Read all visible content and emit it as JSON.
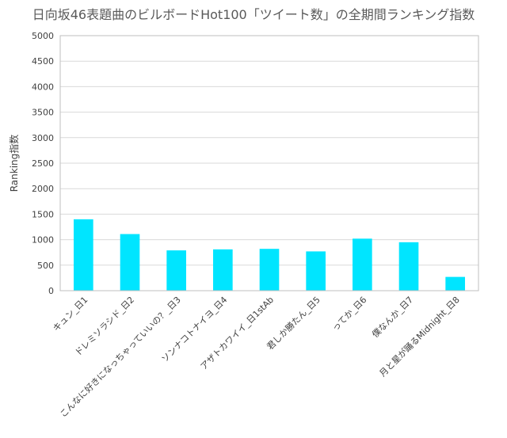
{
  "chart_data": {
    "type": "bar",
    "title": "日向坂46表題曲のビルボードHot100「ツイート数」の全期間ランキング指数",
    "xlabel": "",
    "ylabel": "Ranking指数",
    "ylim": [
      0,
      5000
    ],
    "yticks": [
      0,
      500,
      1000,
      1500,
      2000,
      2500,
      3000,
      3500,
      4000,
      4500,
      5000
    ],
    "grid": true,
    "legend": "none",
    "bar_color": "#00e5ff",
    "categories": [
      "キュン_日1",
      "ドレミソラシド_日2",
      "こんなに好きになっちゃっていいの？_日3",
      "ソンナコトナイヨ_日4",
      "アザトカワイイ_日1stAb",
      "君しか勝たん_日5",
      "ってか_日6",
      "僕なんか_日7",
      "月と星が踊るMidnight_日8"
    ],
    "values": [
      1400,
      1110,
      790,
      810,
      820,
      770,
      1020,
      950,
      270
    ]
  }
}
